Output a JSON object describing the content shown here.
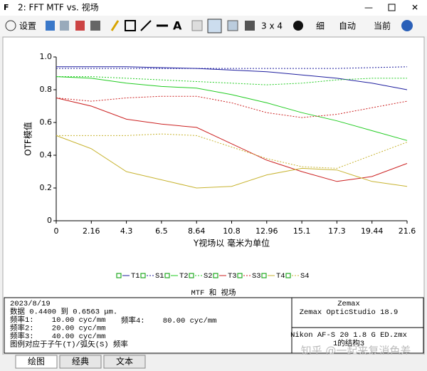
{
  "window": {
    "title": "2: FFT MTF vs. 视场"
  },
  "toolbar": {
    "settings": "设置",
    "layout": "3 x 4",
    "line": "细",
    "scale": "自动",
    "config": "当前"
  },
  "chart_data": {
    "type": "line",
    "title": "MTF 和 视场",
    "x_label": "Y视场以 毫米为单位",
    "y_label": "OTF模值",
    "x": [
      0,
      2.16,
      4.32,
      6.48,
      8.64,
      10.8,
      12.96,
      15.12,
      17.28,
      19.44,
      21.6
    ],
    "xlim": [
      0,
      21.6
    ],
    "xticks": [
      0,
      2.16,
      {
        "value": 4.32,
        "label": "4.3"
      },
      {
        "value": 6.48,
        "label": "6.5"
      },
      8.64,
      10.8,
      12.96,
      {
        "value": 15.12,
        "label": "15.1"
      },
      {
        "value": 17.28,
        "label": "17.3"
      },
      19.44,
      21.6
    ],
    "ylim": [
      0,
      1
    ],
    "yticks": [
      0,
      0.2,
      0.4,
      0.6,
      0.8,
      {
        "value": 1,
        "label": "1.0"
      }
    ],
    "grid": false,
    "legend": "bottom",
    "series": [
      {
        "name": "T1",
        "color": "#1f1f9f",
        "dashed": false,
        "values": [
          0.94,
          0.94,
          0.94,
          0.935,
          0.93,
          0.92,
          0.91,
          0.89,
          0.87,
          0.84,
          0.8
        ]
      },
      {
        "name": "S1",
        "color": "#1f1f9f",
        "dashed": true,
        "values": [
          0.93,
          0.93,
          0.93,
          0.93,
          0.93,
          0.93,
          0.93,
          0.93,
          0.93,
          0.935,
          0.94
        ]
      },
      {
        "name": "T2",
        "color": "#22cc22",
        "dashed": false,
        "values": [
          0.88,
          0.87,
          0.84,
          0.82,
          0.81,
          0.77,
          0.72,
          0.66,
          0.61,
          0.55,
          0.49
        ]
      },
      {
        "name": "S2",
        "color": "#22cc22",
        "dashed": true,
        "values": [
          0.88,
          0.88,
          0.87,
          0.86,
          0.85,
          0.84,
          0.83,
          0.84,
          0.86,
          0.87,
          0.87
        ]
      },
      {
        "name": "T3",
        "color": "#cc2222",
        "dashed": false,
        "values": [
          0.75,
          0.7,
          0.62,
          0.59,
          0.57,
          0.47,
          0.37,
          0.3,
          0.24,
          0.27,
          0.35
        ]
      },
      {
        "name": "S3",
        "color": "#cc2222",
        "dashed": true,
        "values": [
          0.75,
          0.73,
          0.75,
          0.76,
          0.76,
          0.72,
          0.66,
          0.63,
          0.65,
          0.69,
          0.73
        ]
      },
      {
        "name": "T4",
        "color": "#c8b432",
        "dashed": false,
        "values": [
          0.52,
          0.44,
          0.3,
          0.25,
          0.2,
          0.21,
          0.28,
          0.32,
          0.31,
          0.24,
          0.21
        ]
      },
      {
        "name": "S4",
        "color": "#c8b432",
        "dashed": true,
        "values": [
          0.52,
          0.52,
          0.52,
          0.53,
          0.52,
          0.45,
          0.38,
          0.33,
          0.32,
          0.4,
          0.48
        ]
      }
    ]
  },
  "info": {
    "left": [
      "2023/8/19",
      "数据 0.4400 到 0.6563 μm.",
      "频率1:    10.00 cyc/mm",
      "频率2:    20.00 cyc/mm",
      "频率3:    40.00 cyc/mm",
      "图例对应于子午(T)/弧矢(S) 频率"
    ],
    "freq4": "频率4:    80.00 cyc/mm",
    "right": [
      "Zemax",
      "Zemax OpticStudio 18.9"
    ],
    "file": "Nikon AF-S 20 1.8 G ED.zmx",
    "config": "1的结构3"
  },
  "watermark": "知乎 @一起来复消色差",
  "tabs": [
    "绘图",
    "经典",
    "文本"
  ]
}
